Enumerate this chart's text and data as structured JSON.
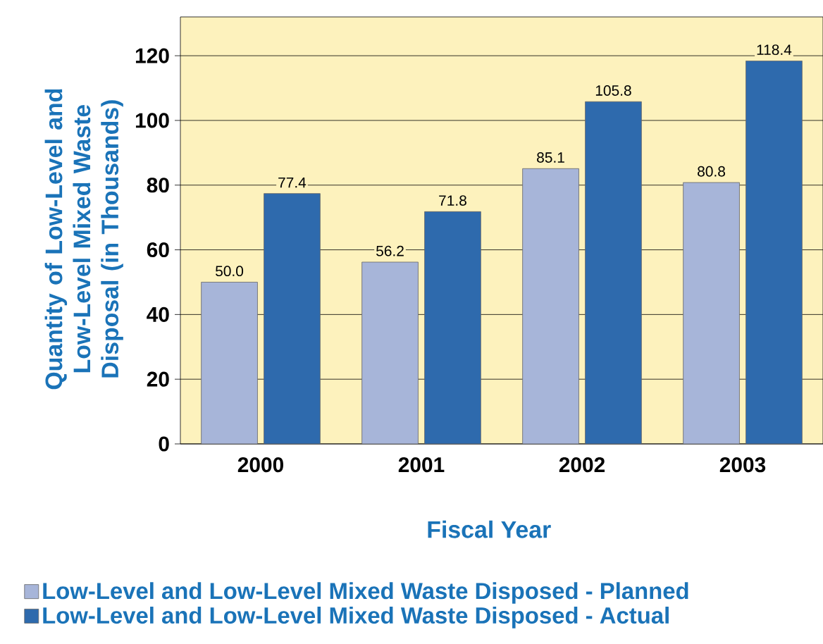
{
  "chart_data": {
    "type": "bar",
    "xlabel": "Fiscal Year",
    "ylabel": "Quantity of Low-Level and Low-Level Mixed Waste Disposal (in Thousands)",
    "categories": [
      "2000",
      "2001",
      "2002",
      "2003"
    ],
    "series": [
      {
        "name": "Low-Level and Low-Level Mixed Waste Disposed - Planned",
        "color": "#a7b5d9",
        "values": [
          50.0,
          56.2,
          85.1,
          80.8
        ],
        "value_labels": [
          "50.0",
          "56.2",
          "85.1",
          "80.8"
        ]
      },
      {
        "name": "Low-Level and Low-Level Mixed Waste Disposed - Actual",
        "color": "#2e6aad",
        "values": [
          77.4,
          71.8,
          105.8,
          118.4
        ],
        "value_labels": [
          "77.4",
          "71.8",
          "105.8",
          "118.4"
        ]
      }
    ],
    "ylim": [
      0,
      132
    ],
    "yticks": [
      0,
      20,
      40,
      60,
      80,
      100,
      120
    ],
    "grid": "y",
    "legend": "bottom"
  }
}
